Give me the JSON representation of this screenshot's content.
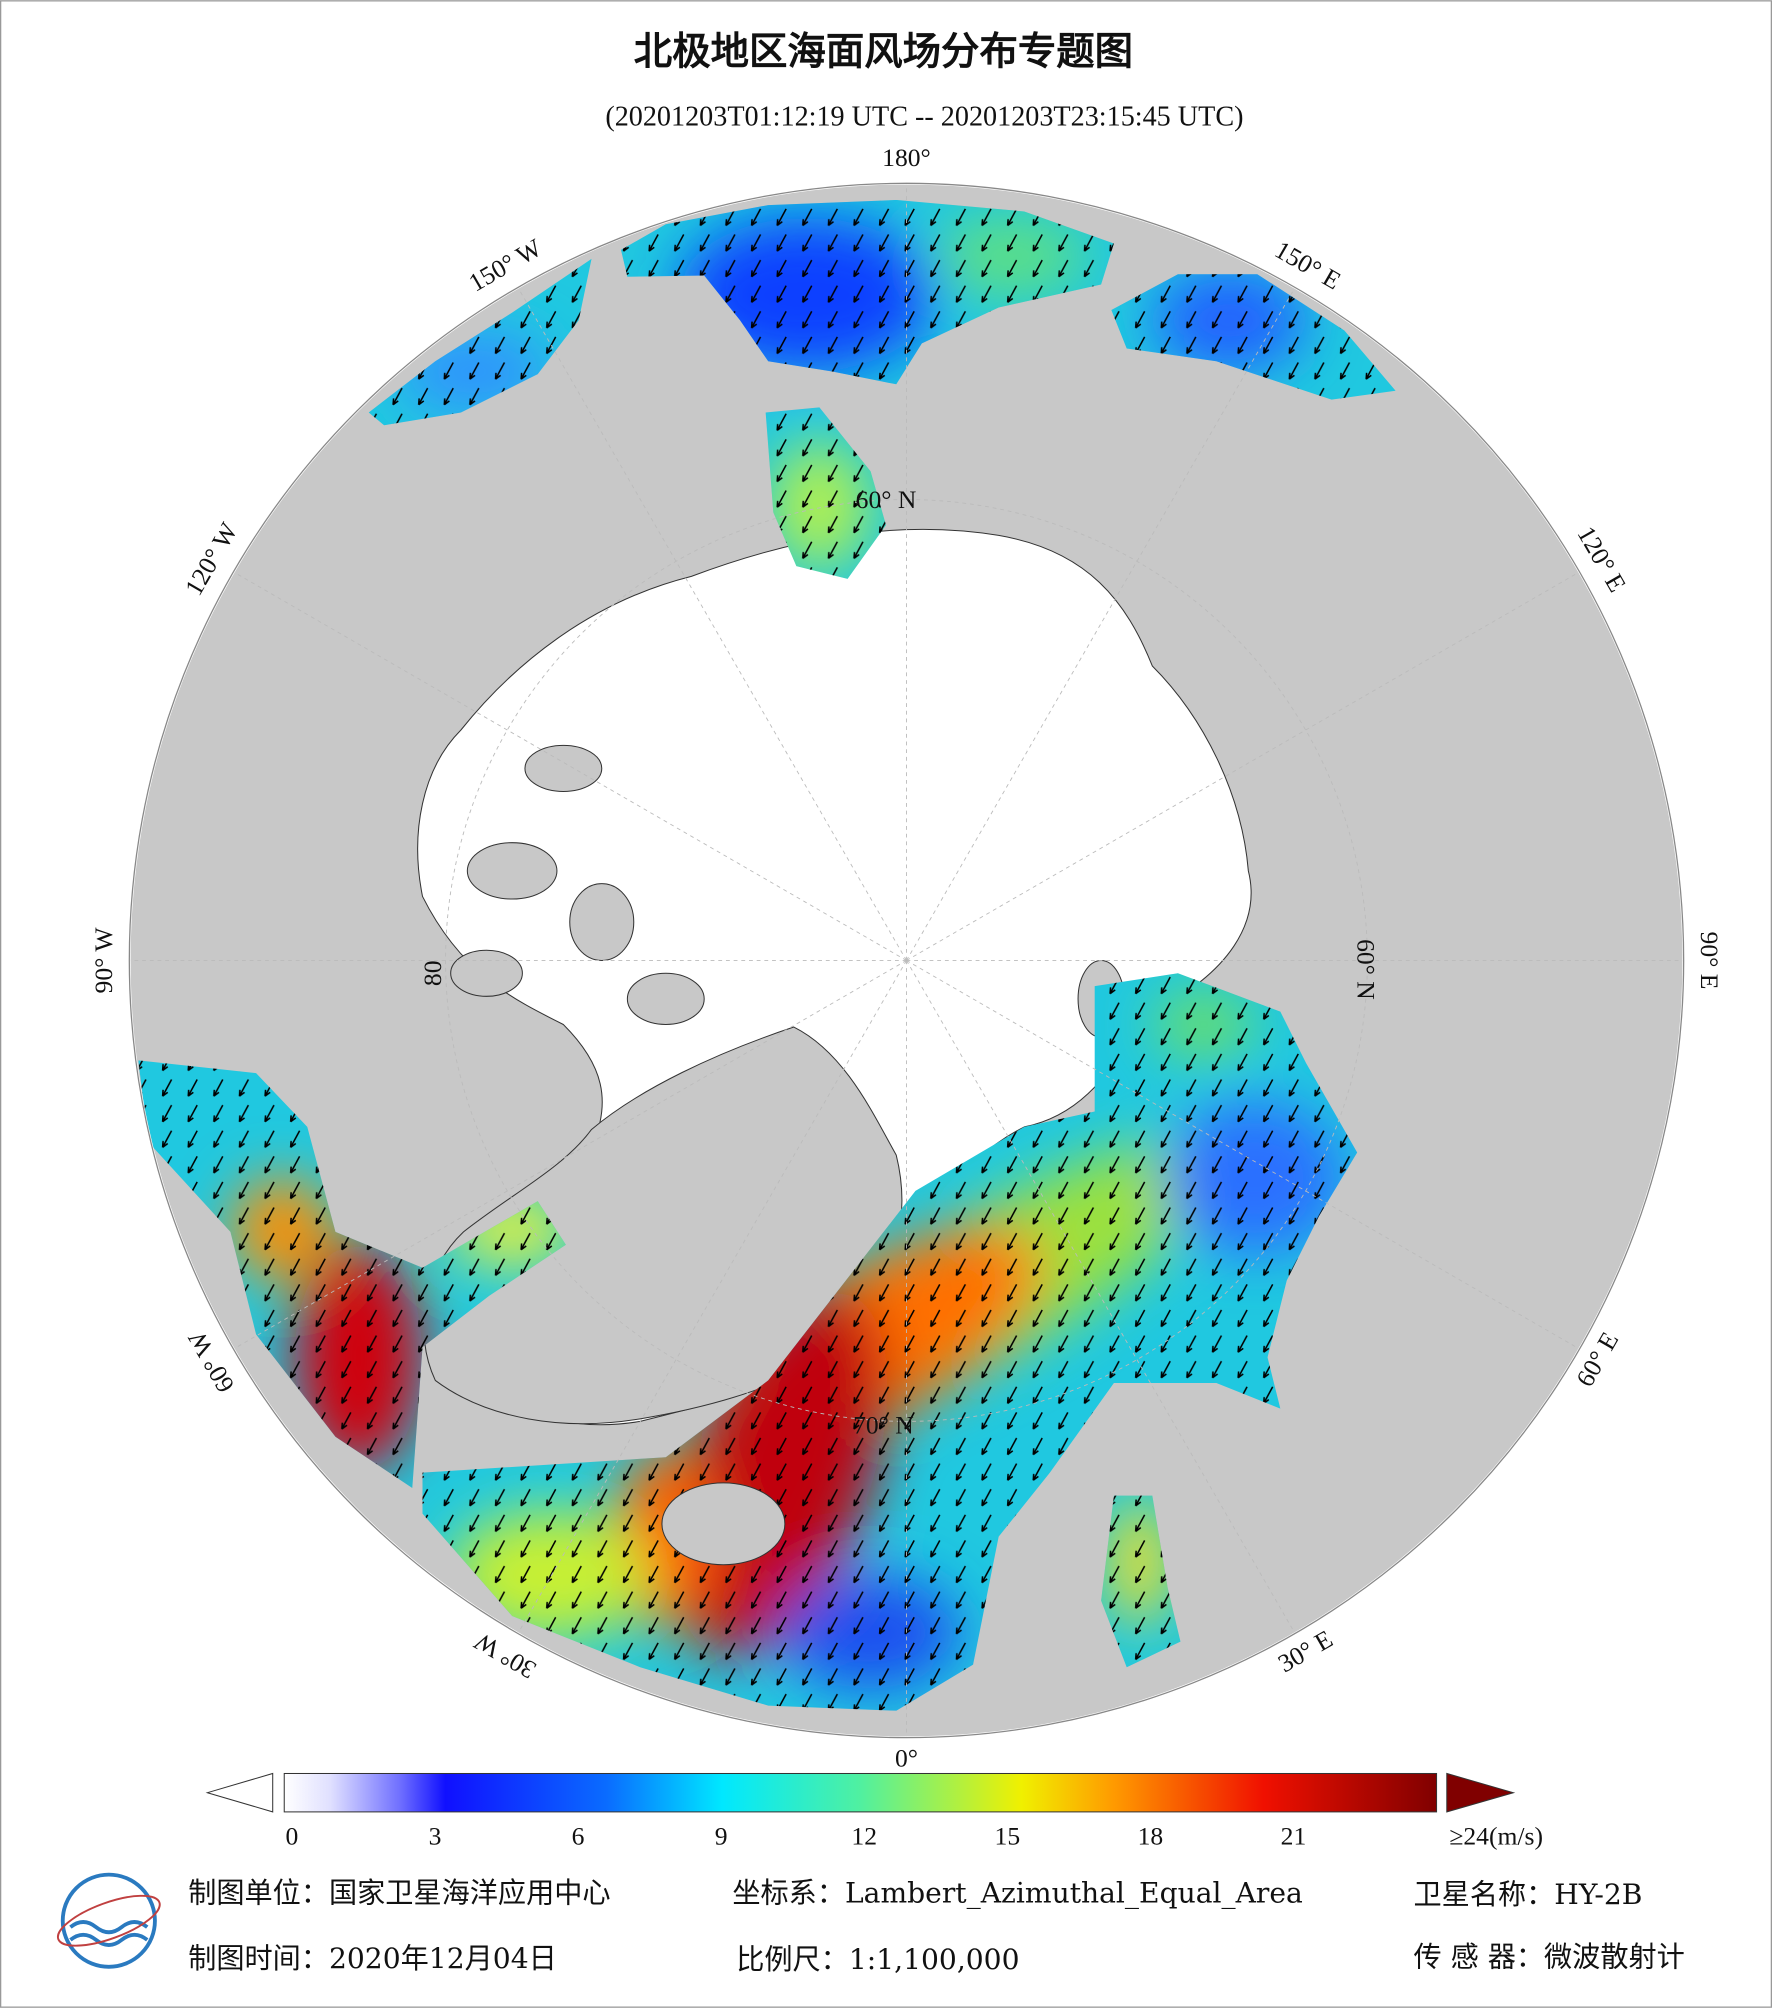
{
  "header": {
    "title": "北极地区海面风场分布专题图",
    "subtitle": "(20201203T01:12:19 UTC -- 20201203T23:15:45 UTC)"
  },
  "map": {
    "longitude_labels": [
      "180°",
      "150° E",
      "120° E",
      "90° E",
      "60° E",
      "30° E",
      "0°",
      "30° W",
      "60° W",
      "90° W",
      "120° W",
      "150° W"
    ],
    "latitude_labels": [
      "60° N",
      "60° N",
      "70° N",
      "80"
    ]
  },
  "colorbar": {
    "lim": [
      0,
      24
    ],
    "ticks": [
      0,
      3,
      6,
      9,
      12,
      15,
      18,
      21,
      {
        "value": 24,
        "label": "≥24(m/s)"
      }
    ]
  },
  "footer": {
    "unit": "制图单位：国家卫星海洋应用中心",
    "coordinate_system": "坐标系：Lambert_Azimuthal_Equal_Area",
    "satellite": "卫星名称：HY-2B",
    "date": "制图时间：2020年12月04日",
    "scale": "比例尺：1:1,100,000",
    "sensor": "传 感 器：微波散射计"
  }
}
